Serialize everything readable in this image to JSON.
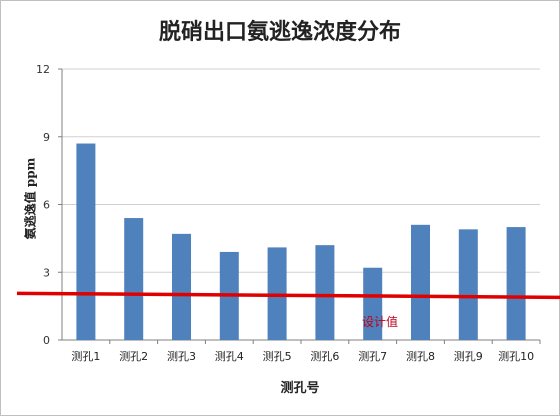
{
  "chart_data": {
    "type": "bar",
    "title": "脱硝出口氨逃逸浓度分布",
    "xlabel": "测孔号",
    "ylabel": "氨逃逸值 ppm",
    "categories": [
      "测孔1",
      "测孔2",
      "测孔3",
      "测孔4",
      "测孔5",
      "测孔6",
      "测孔7",
      "测孔8",
      "测孔9",
      "测孔10"
    ],
    "values": [
      8.7,
      5.4,
      4.7,
      3.9,
      4.1,
      4.2,
      3.2,
      5.1,
      4.9,
      5.0
    ],
    "ylim": [
      0,
      12
    ],
    "yticks": [
      "0",
      "3",
      "6",
      "9",
      "12"
    ],
    "grid": true,
    "bar_color": "#4f81bd",
    "reference_line": {
      "label": "设计值",
      "value": 2.0,
      "color": "#e00000"
    }
  }
}
